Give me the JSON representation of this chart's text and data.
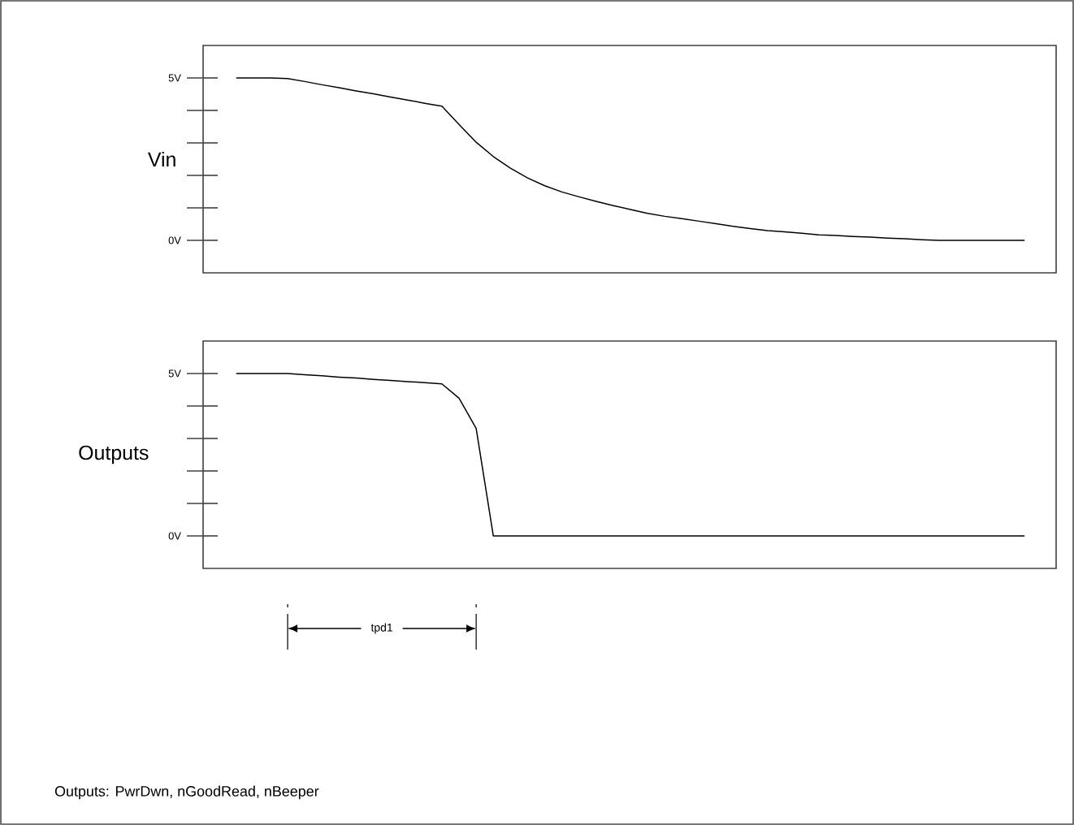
{
  "chart_data": [
    {
      "type": "line",
      "ylabel": "Vin",
      "ylim": [
        -1,
        6
      ],
      "tick_labels": "y",
      "categories": [
        null,
        null,
        null,
        null,
        null,
        null,
        null,
        null,
        null,
        null,
        null,
        null,
        null,
        null,
        null,
        null,
        null,
        null,
        null,
        null,
        null,
        null,
        null,
        null,
        null,
        null,
        null,
        null,
        null,
        null,
        null,
        null,
        null,
        null,
        null,
        null,
        null,
        null,
        null,
        null,
        null,
        null,
        null,
        null,
        null,
        null,
        null
      ],
      "yticks": [
        {
          "value": 0,
          "label": "0V"
        },
        {
          "value": 1,
          "label": null
        },
        {
          "value": 2,
          "label": null
        },
        {
          "value": 3,
          "label": null
        },
        {
          "value": 4,
          "label": null
        },
        {
          "value": 5,
          "label": "5V"
        }
      ],
      "series": [
        {
          "color": "#000000",
          "values": [
            5,
            5,
            5,
            4.98,
            4.89,
            4.79,
            4.7,
            4.6,
            4.51,
            4.41,
            4.32,
            4.22,
            4.13,
            3.57,
            3.02,
            2.58,
            2.22,
            1.92,
            1.68,
            1.49,
            1.34,
            1.2,
            1.07,
            0.95,
            0.83,
            0.74,
            0.67,
            0.59,
            0.51,
            0.43,
            0.36,
            0.3,
            0.26,
            0.22,
            0.17,
            0.15,
            0.12,
            0.1,
            0.07,
            0.05,
            0.02,
            0,
            0,
            0,
            0,
            0,
            0
          ]
        }
      ]
    },
    {
      "type": "line",
      "ylabel": "Outputs",
      "ylim": [
        -1,
        6
      ],
      "tick_labels": "y",
      "categories": [
        null,
        null,
        null,
        null,
        null,
        null,
        null,
        null,
        null,
        null,
        null,
        null,
        null,
        null,
        null,
        null,
        null,
        null,
        null,
        null,
        null,
        null,
        null,
        null,
        null,
        null,
        null,
        null,
        null,
        null,
        null,
        null,
        null,
        null,
        null,
        null,
        null,
        null,
        null,
        null,
        null,
        null,
        null,
        null,
        null,
        null,
        null
      ],
      "yticks": [
        {
          "value": 0,
          "label": "0V"
        },
        {
          "value": 1,
          "label": null
        },
        {
          "value": 2,
          "label": null
        },
        {
          "value": 3,
          "label": null
        },
        {
          "value": 4,
          "label": null
        },
        {
          "value": 5,
          "label": "5V"
        }
      ],
      "series": [
        {
          "color": "#000000",
          "values": [
            5,
            5,
            5,
            5,
            4.96,
            4.93,
            4.89,
            4.86,
            4.82,
            4.79,
            4.75,
            4.72,
            4.68,
            4.24,
            3.31,
            0,
            0,
            0,
            0,
            0,
            0,
            0,
            0,
            0,
            0,
            0,
            0,
            0,
            0,
            0,
            0,
            0,
            0,
            0,
            0,
            0,
            0,
            0,
            0,
            0,
            0,
            0,
            0,
            0,
            0,
            0,
            0
          ]
        }
      ],
      "annotations": [
        "tpd1",
        "Outputs: PwrDwn, nGoodRead, nBeeper"
      ]
    }
  ]
}
